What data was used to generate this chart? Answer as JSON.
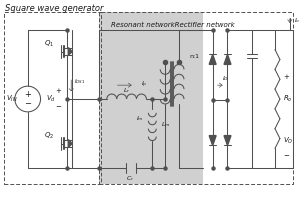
{
  "title": "Square wave generator",
  "subtitle": "Resonant networkRectifier network",
  "bg_color": "#ffffff",
  "line_color": "#505050",
  "box_fill_gray": "#d4d4d4",
  "text_color": "#1a1a1a",
  "figsize": [
    3.0,
    1.99
  ],
  "dpi": 100
}
